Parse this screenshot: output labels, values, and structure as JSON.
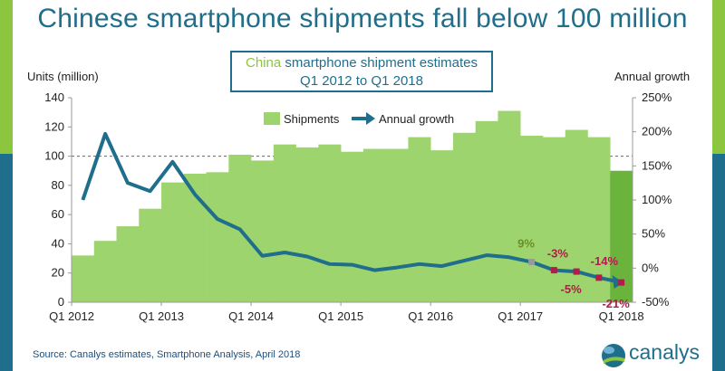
{
  "title": "Chinese smartphone shipments fall below 100 million",
  "subtitle_part1": "China",
  "subtitle_part2": " smartphone shipment estimates",
  "subtitle_line2": "Q1 2012 to Q1 2018",
  "source": "Source: Canalys estimates, Smartphone Analysis, April 2018",
  "logo_text": "canalys",
  "colors": {
    "bars": "#9ed46e",
    "bar_highlight": "#6ab43d",
    "line": "#1f6e8c",
    "marker_gray": "#999999",
    "marker_red": "#b31b4a",
    "label_red": "#b31b4a",
    "label_green": "#6b8e23",
    "brand_blue": "#1f6e8c",
    "brand_green": "#8cc63f"
  },
  "chart_data": {
    "type": "bar",
    "ylabel_left": "Units (million)",
    "ylabel_right": "Annual growth",
    "left_ticks": [
      "0",
      "20",
      "40",
      "60",
      "80",
      "100",
      "120",
      "140"
    ],
    "right_ticks": [
      "-50%",
      "0%",
      "50%",
      "100%",
      "150%",
      "200%",
      "250%"
    ],
    "x_tick_labels": [
      "Q1 2012",
      "Q1 2013",
      "Q1 2014",
      "Q1 2015",
      "Q1 2016",
      "Q1 2017",
      "Q1 2018"
    ],
    "ylim_left": [
      0,
      140
    ],
    "ylim_right": [
      -50,
      250
    ],
    "reference_line": 100,
    "legend": [
      "Shipments",
      "Annual growth"
    ],
    "legend_position": "top-center",
    "categories": [
      "Q1 2012",
      "Q2 2012",
      "Q3 2012",
      "Q4 2012",
      "Q1 2013",
      "Q2 2013",
      "Q3 2013",
      "Q4 2013",
      "Q1 2014",
      "Q2 2014",
      "Q3 2014",
      "Q4 2014",
      "Q1 2015",
      "Q2 2015",
      "Q3 2015",
      "Q4 2015",
      "Q1 2016",
      "Q2 2016",
      "Q3 2016",
      "Q4 2016",
      "Q1 2017",
      "Q2 2017",
      "Q3 2017",
      "Q4 2017",
      "Q1 2018"
    ],
    "series": [
      {
        "name": "Shipments",
        "values": [
          32,
          42,
          52,
          64,
          82,
          88,
          89,
          101,
          97,
          108,
          106,
          108,
          103,
          105,
          105,
          113,
          104,
          116,
          124,
          131,
          114,
          113,
          118,
          113,
          90
        ]
      },
      {
        "name": "Annual growth",
        "values": [
          100,
          197,
          125,
          113,
          156,
          108,
          72,
          57,
          18,
          23,
          17,
          6,
          5,
          -3,
          1,
          6,
          3,
          11,
          19,
          16,
          9,
          -3,
          -5,
          -14,
          -21
        ]
      }
    ],
    "annotations": [
      {
        "label": "9%",
        "index": 20,
        "color": "green"
      },
      {
        "label": "-3%",
        "index": 21,
        "color": "red"
      },
      {
        "label": "-5%",
        "index": 22,
        "color": "red"
      },
      {
        "label": "-14%",
        "index": 23,
        "color": "red"
      },
      {
        "label": "-21%",
        "index": 24,
        "color": "red"
      }
    ]
  }
}
